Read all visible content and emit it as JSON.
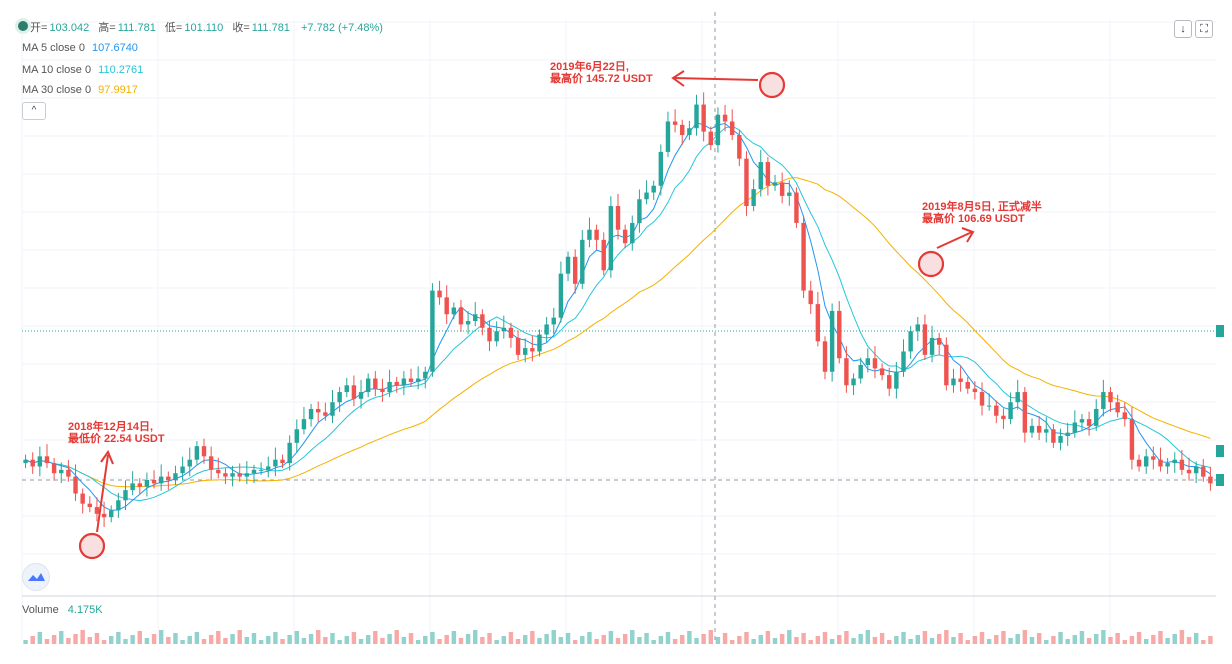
{
  "ohlc": {
    "open_label": "开",
    "open": "103.042",
    "high_label": "高",
    "high": "111.781",
    "low_label": "低",
    "low": "101.110",
    "close_label": "收",
    "close": "111.781",
    "change": "+7.782 (+7.48%)"
  },
  "indicators": [
    {
      "label": "MA 5 close 0",
      "value": "107.6740",
      "color": "#2196f3"
    },
    {
      "label": "MA 10 close 0",
      "value": "110.2761",
      "color": "#26c6da"
    },
    {
      "label": "MA 30 close 0",
      "value": "97.9917",
      "color": "#f5b100"
    }
  ],
  "volume": {
    "label": "Volume",
    "value": "4.175K"
  },
  "toolbar": {
    "collapse_icon": "^",
    "download_icon": "↓",
    "fullscreen_icon": "⛶"
  },
  "annotations": [
    {
      "line1": "2018年12月14日,",
      "line2": "最低价 22.54 USDT"
    },
    {
      "line1": "2019年6月22日,",
      "line2": "最高价 145.72 USDT"
    },
    {
      "line1": "2019年8月5日, 正式减半",
      "line2": "最高价 106.69 USDT"
    }
  ],
  "chart_data": {
    "type": "candlestick",
    "xlabel": "",
    "ylabel": "",
    "ylim": [
      0,
      170
    ],
    "colors": {
      "up": "#26a69a",
      "down": "#ef5350",
      "ma5": "#2196f3",
      "ma10": "#26c6da",
      "ma30": "#f5b100",
      "annotation": "#e53935"
    },
    "grid": true,
    "close_series": [
      40,
      38,
      41,
      39,
      36,
      37,
      35,
      30,
      27,
      26,
      24,
      23,
      25,
      28,
      31,
      33,
      32,
      34,
      33,
      35,
      34,
      36,
      38,
      40,
      44,
      41,
      37,
      36,
      35,
      36,
      35,
      36,
      37,
      37,
      38,
      40,
      39,
      45,
      49,
      52,
      55,
      54,
      53,
      57,
      60,
      62,
      58,
      60,
      64,
      61,
      60,
      63,
      62,
      64,
      63,
      64,
      66,
      90,
      88,
      83,
      85,
      80,
      81,
      83,
      79,
      75,
      78,
      79,
      76,
      71,
      73,
      72,
      77,
      80,
      82,
      95,
      100,
      92,
      105,
      108,
      105,
      96,
      115,
      108,
      104,
      110,
      117,
      119,
      121,
      131,
      140,
      139,
      136,
      138,
      145,
      137,
      133,
      142,
      140,
      136,
      129,
      115,
      120,
      128,
      121,
      122,
      118,
      119,
      110,
      90,
      86,
      75,
      66,
      84,
      70,
      62,
      64,
      68,
      70,
      67,
      65,
      61,
      66,
      72,
      78,
      80,
      71,
      76,
      74,
      62,
      64,
      63,
      61,
      60,
      56,
      56,
      53,
      52,
      57,
      60,
      48,
      50,
      48,
      49,
      45,
      47,
      48,
      51,
      52,
      50,
      55,
      60,
      57,
      54,
      52,
      40,
      38,
      41,
      40,
      38,
      39,
      40,
      37,
      36,
      38,
      35,
      33
    ],
    "ma5_last": 107.674,
    "ma10_last": 110.2761,
    "ma30_last": 97.9917,
    "marked_points": [
      {
        "date": "2018-12-14",
        "price": 22.54,
        "type": "low"
      },
      {
        "date": "2019-06-22",
        "price": 145.72,
        "type": "high"
      },
      {
        "date": "2019-08-05",
        "price": 106.69,
        "type": "high"
      }
    ],
    "volume_last": 4175
  }
}
